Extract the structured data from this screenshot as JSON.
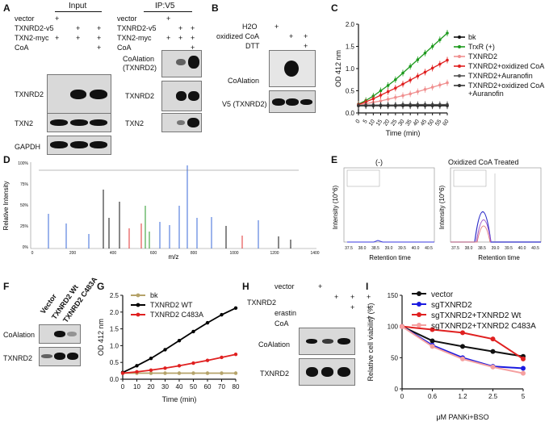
{
  "panels": {
    "A": {
      "label": "A",
      "input_header": "Input",
      "ip_header": "IP:V5",
      "rows": [
        "vector",
        "TXNRD2-v5",
        "TXN2-myc",
        "CoA"
      ],
      "input_marks": [
        [
          "+",
          "",
          ""
        ],
        [
          "",
          "+",
          "+"
        ],
        [
          "+",
          "+",
          "+"
        ],
        [
          "",
          "",
          "+"
        ]
      ],
      "ip_marks": [
        [
          "+",
          "",
          ""
        ],
        [
          "",
          "+",
          "+"
        ],
        [
          "+",
          "+",
          "+"
        ],
        [
          "",
          "",
          "+"
        ]
      ],
      "input_blots": [
        "TXNRD2",
        "TXN2",
        "GAPDH"
      ],
      "ip_blots": [
        "CoAlation\n(TXNRD2)",
        "TXNRD2",
        "TXN2"
      ],
      "ip_blot1_line1": "CoAlation",
      "ip_blot1_line2": "(TXNRD2)"
    },
    "B": {
      "label": "B",
      "rows": [
        "H2O",
        "oxidized CoA",
        "DTT"
      ],
      "marks": [
        [
          "+",
          "",
          ""
        ],
        [
          "",
          "+",
          "+"
        ],
        [
          "",
          "",
          "+"
        ]
      ],
      "blots": [
        "CoAlation",
        "V5 (TXNRD2)"
      ]
    },
    "D": {
      "label": "D",
      "ylabel": "Relative Intensity",
      "xlabel": "m/z",
      "yticks": [
        "100%",
        "75%",
        "50%",
        "25%",
        "0%"
      ],
      "xticks": [
        "0",
        "200",
        "400",
        "600",
        "800",
        "1000",
        "1200",
        "1400"
      ]
    },
    "E": {
      "label": "E",
      "left_title": "(-)",
      "right_title": "Oxidized CoA Treated",
      "ylabel": "Intensity (10^6)",
      "xlabel": "Retention time",
      "xticks": [
        "37.5",
        "38.0",
        "38.5",
        "39.0",
        "39.5",
        "40.0",
        "40.5"
      ]
    },
    "F": {
      "label": "F",
      "lanes": [
        "Vector",
        "TXNRD2 Wt",
        "TXNRD2 C483A"
      ],
      "blots": [
        "CoAlation",
        "TXNRD2"
      ]
    },
    "H": {
      "label": "H",
      "rows": [
        "vector",
        "TXNRD2",
        "erastin",
        "CoA"
      ],
      "marks": [
        [
          "+",
          "",
          "",
          ""
        ],
        [
          "",
          "+",
          "+",
          "+"
        ],
        [
          "",
          "",
          "+",
          "+"
        ],
        [
          "",
          "",
          "",
          "+"
        ]
      ],
      "blots": [
        "CoAlation",
        "TXNRD2"
      ]
    }
  },
  "chart_data": [
    {
      "panel": "C",
      "type": "line",
      "title": "",
      "xlabel": "Time (min)",
      "ylabel": "OD 412 nm",
      "x": [
        0,
        5,
        10,
        15,
        20,
        25,
        30,
        35,
        40,
        45,
        50,
        55,
        60
      ],
      "xlim": [
        0,
        60
      ],
      "ylim": [
        0,
        2.0
      ],
      "yticks": [
        "0.0",
        "0.5",
        "1.0",
        "1.5",
        "2.0"
      ],
      "series": [
        {
          "name": "bk",
          "color": "#111111",
          "values": [
            0.17,
            0.17,
            0.17,
            0.17,
            0.17,
            0.17,
            0.17,
            0.17,
            0.17,
            0.17,
            0.17,
            0.17,
            0.17
          ]
        },
        {
          "name": "TrxR (+)",
          "color": "#1e9a1e",
          "values": [
            0.2,
            0.28,
            0.38,
            0.5,
            0.62,
            0.75,
            0.9,
            1.05,
            1.2,
            1.35,
            1.5,
            1.65,
            1.8
          ]
        },
        {
          "name": "TXNRD2",
          "color": "#f08f8f",
          "values": [
            0.18,
            0.21,
            0.24,
            0.27,
            0.31,
            0.35,
            0.39,
            0.43,
            0.48,
            0.53,
            0.58,
            0.63,
            0.68
          ]
        },
        {
          "name": "TXNRD2+oxidized CoA",
          "color": "#e02020",
          "values": [
            0.19,
            0.25,
            0.32,
            0.4,
            0.48,
            0.56,
            0.65,
            0.74,
            0.83,
            0.92,
            1.01,
            1.1,
            1.19
          ]
        },
        {
          "name": "TXNRD2+Auranofin",
          "color": "#555555",
          "values": [
            0.17,
            0.18,
            0.18,
            0.18,
            0.18,
            0.18,
            0.19,
            0.19,
            0.19,
            0.19,
            0.19,
            0.19,
            0.19
          ]
        },
        {
          "name": "TXNRD2+oxidized CoA\n+Auranofin",
          "color": "#333333",
          "values": [
            0.16,
            0.16,
            0.16,
            0.16,
            0.16,
            0.16,
            0.16,
            0.16,
            0.16,
            0.16,
            0.16,
            0.16,
            0.16
          ]
        }
      ],
      "legend_line1": "TXNRD2+oxidized CoA",
      "legend_line2": "+Auranofin"
    },
    {
      "panel": "G",
      "type": "line",
      "title": "",
      "xlabel": "Time (min)",
      "ylabel": "OD 412 nm",
      "x": [
        0,
        10,
        20,
        30,
        40,
        50,
        60,
        70,
        80
      ],
      "xlim": [
        0,
        80
      ],
      "ylim": [
        0,
        2.5
      ],
      "yticks": [
        "0.0",
        "0.5",
        "1.0",
        "1.5",
        "2.0",
        "2.5"
      ],
      "series": [
        {
          "name": "bk",
          "color": "#b5a36a",
          "values": [
            0.18,
            0.18,
            0.18,
            0.18,
            0.18,
            0.18,
            0.18,
            0.18,
            0.18
          ]
        },
        {
          "name": "TXNRD2 WT",
          "color": "#000000",
          "values": [
            0.2,
            0.4,
            0.62,
            0.88,
            1.15,
            1.42,
            1.68,
            1.92,
            2.12
          ]
        },
        {
          "name": "TXNRD2 C483A",
          "color": "#e02020",
          "values": [
            0.18,
            0.22,
            0.27,
            0.33,
            0.4,
            0.48,
            0.56,
            0.65,
            0.74
          ]
        }
      ]
    },
    {
      "panel": "I",
      "type": "line",
      "title": "",
      "xlabel": "μM PANKi+BSO",
      "ylabel": "Relative cell viability (%)",
      "categories": [
        "0",
        "0.6",
        "1.2",
        "2.5",
        "5"
      ],
      "ylim": [
        0,
        150
      ],
      "yticks": [
        "0",
        "50",
        "100",
        "150"
      ],
      "series": [
        {
          "name": "vector",
          "color": "#111111",
          "values": [
            100,
            77,
            68,
            60,
            52
          ]
        },
        {
          "name": "sgTXNRD2",
          "color": "#1a1ae0",
          "values": [
            100,
            70,
            50,
            36,
            33
          ]
        },
        {
          "name": "sgTXNRD2+TXNRD2 Wt",
          "color": "#e02020",
          "values": [
            100,
            95,
            90,
            80,
            48
          ]
        },
        {
          "name": "sgTXNRD2+TXNRD2 C483A",
          "color": "#f5a0a0",
          "values": [
            100,
            68,
            48,
            35,
            25
          ]
        }
      ]
    }
  ]
}
